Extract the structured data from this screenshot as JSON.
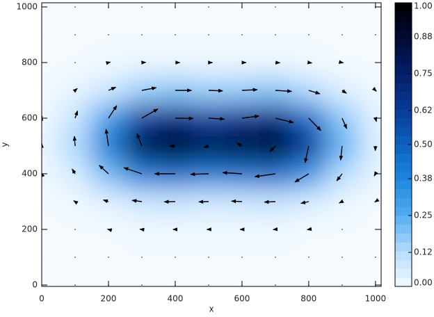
{
  "chart_data": {
    "type": "quiver",
    "x_label": "x",
    "y_label": "y",
    "x": [
      0,
      100,
      200,
      300,
      400,
      500,
      600,
      700,
      800,
      900,
      1000
    ],
    "y": [
      0,
      100,
      200,
      300,
      400,
      500,
      600,
      700,
      800,
      900,
      1000
    ],
    "values": [
      [
        0,
        0,
        0,
        0,
        0,
        0,
        0,
        0,
        0,
        0,
        0
      ],
      [
        0,
        0,
        0,
        0,
        0,
        0,
        0,
        0,
        0,
        0,
        0
      ],
      [
        0,
        0,
        0,
        0.01,
        0.01,
        0.01,
        0.01,
        0.01,
        0,
        0,
        0
      ],
      [
        0,
        0.01,
        0.04,
        0.08,
        0.09,
        0.07,
        0.08,
        0.09,
        0.06,
        0.02,
        0
      ],
      [
        0.01,
        0.06,
        0.21,
        0.41,
        0.46,
        0.41,
        0.44,
        0.46,
        0.32,
        0.12,
        0.03
      ],
      [
        0.02,
        0.13,
        0.42,
        0.82,
        0.93,
        0.81,
        0.87,
        0.93,
        0.63,
        0.24,
        0.05
      ],
      [
        0.01,
        0.09,
        0.31,
        0.61,
        0.69,
        0.6,
        0.65,
        0.69,
        0.47,
        0.18,
        0.04
      ],
      [
        0,
        0.03,
        0.08,
        0.16,
        0.19,
        0.16,
        0.17,
        0.19,
        0.13,
        0.05,
        0.01
      ],
      [
        0,
        0,
        0.01,
        0.02,
        0.02,
        0.02,
        0.02,
        0.02,
        0.01,
        0,
        0
      ],
      [
        0,
        0,
        0,
        0,
        0,
        0,
        0,
        0,
        0,
        0,
        0
      ],
      [
        0,
        0,
        0,
        0,
        0,
        0,
        0,
        0,
        0,
        0,
        0
      ]
    ],
    "xlim": [
      0,
      1017
    ],
    "ylim": [
      -5,
      1015
    ],
    "xticks": [
      0,
      200,
      400,
      600,
      800,
      1000
    ],
    "yticks": [
      0,
      200,
      400,
      600,
      800,
      1000
    ],
    "clim": [
      0,
      1
    ],
    "colormap": [
      "#f4faff",
      "#b4dcff",
      "#55adf2",
      "#1e88e0",
      "#0c62c0",
      "#083a98",
      "#041e68",
      "#020a34",
      "#000000"
    ],
    "cticks": [
      {
        "value": 0,
        "label": "0.00"
      },
      {
        "value": 0.12,
        "label": "0.12"
      },
      {
        "value": 0.25,
        "label": "0.25"
      },
      {
        "value": 0.38,
        "label": "0.38"
      },
      {
        "value": 0.5,
        "label": "0.50"
      },
      {
        "value": 0.62,
        "label": "0.62"
      },
      {
        "value": 0.75,
        "label": "0.75"
      },
      {
        "value": 0.88,
        "label": "0.88"
      },
      {
        "value": 1,
        "label": "1.00"
      }
    ]
  }
}
